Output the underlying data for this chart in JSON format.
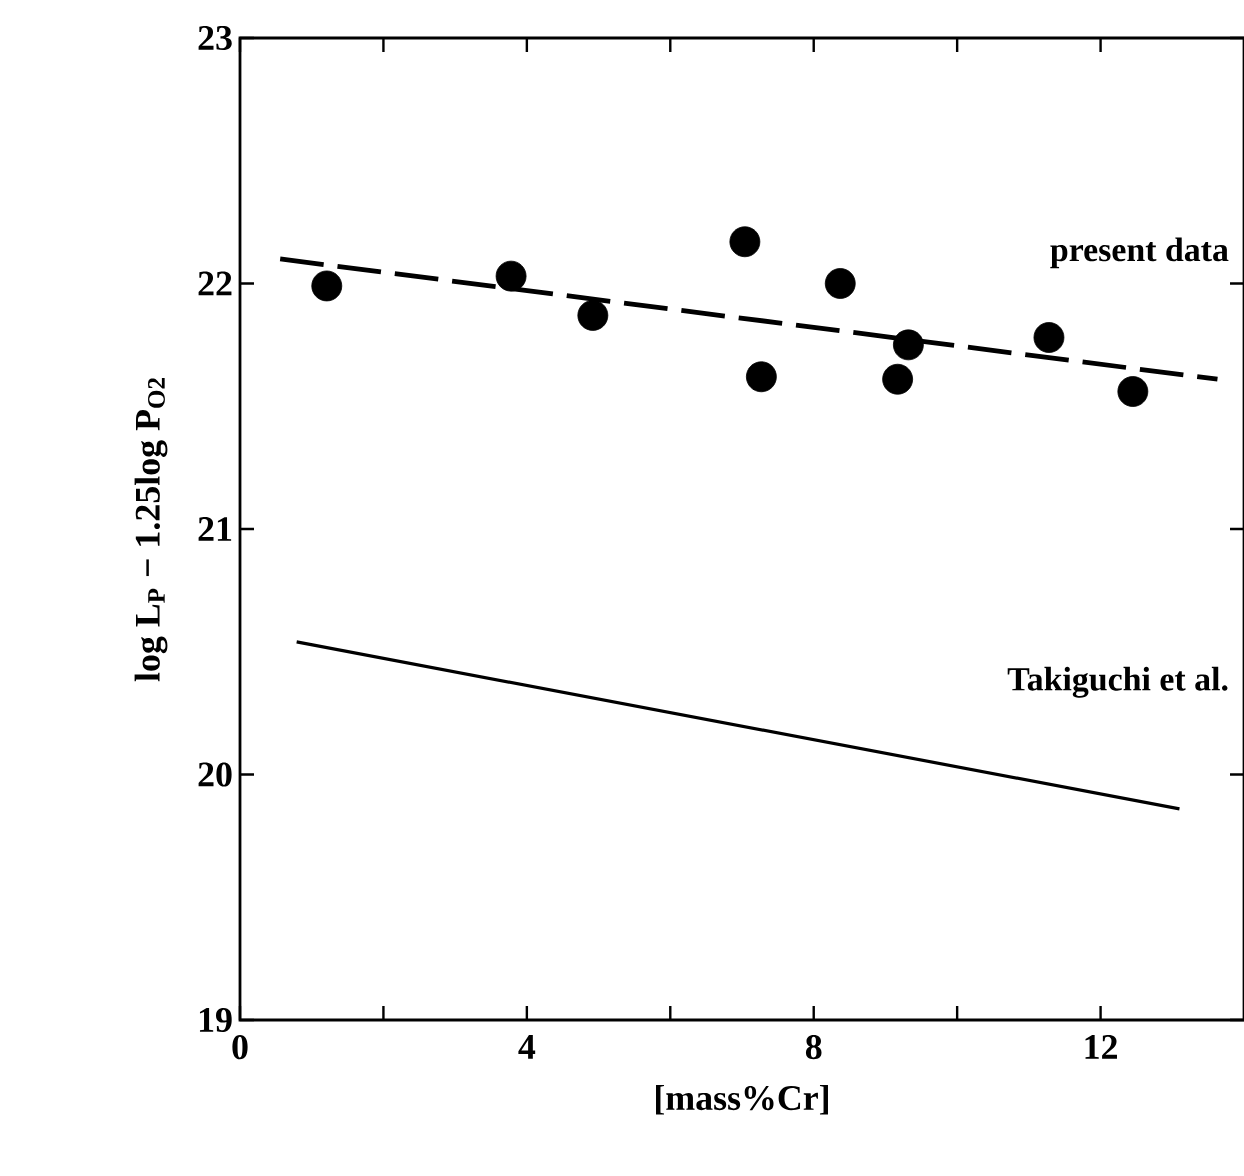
{
  "chart_data": {
    "type": "scatter",
    "xlabel": "[mass%Cr]",
    "ylabel": "log L$_{P}$ − 1.25log P$_{O2}$",
    "xlim": [
      0,
      14
    ],
    "ylim": [
      19,
      23
    ],
    "xticks": [
      0,
      {
        "value": 2,
        "label": null
      },
      4,
      {
        "value": 6,
        "label": null
      },
      8,
      {
        "value": 10,
        "label": null
      },
      12
    ],
    "yticks": [
      19,
      20,
      21,
      22,
      23
    ],
    "series": [
      {
        "color": "#000000",
        "marker": "circle",
        "x": [
          1.21,
          3.78,
          4.92,
          7.04,
          7.27,
          8.37,
          9.17,
          9.32,
          11.28,
          12.45
        ],
        "values": [
          21.99,
          22.03,
          21.87,
          22.17,
          21.62,
          22.0,
          21.61,
          21.75,
          21.78,
          21.56
        ]
      },
      {
        "type": "line",
        "color": "#000000",
        "line_style": "dashed",
        "x": [
          0.56,
          13.63
        ],
        "values": [
          22.1,
          21.61
        ]
      },
      {
        "type": "line",
        "color": "#000000",
        "line_style": "solid",
        "x": [
          0.79,
          13.1
        ],
        "values": [
          20.54,
          19.86
        ]
      }
    ],
    "annotations": [
      "present data",
      "Takiguchi et al."
    ]
  }
}
